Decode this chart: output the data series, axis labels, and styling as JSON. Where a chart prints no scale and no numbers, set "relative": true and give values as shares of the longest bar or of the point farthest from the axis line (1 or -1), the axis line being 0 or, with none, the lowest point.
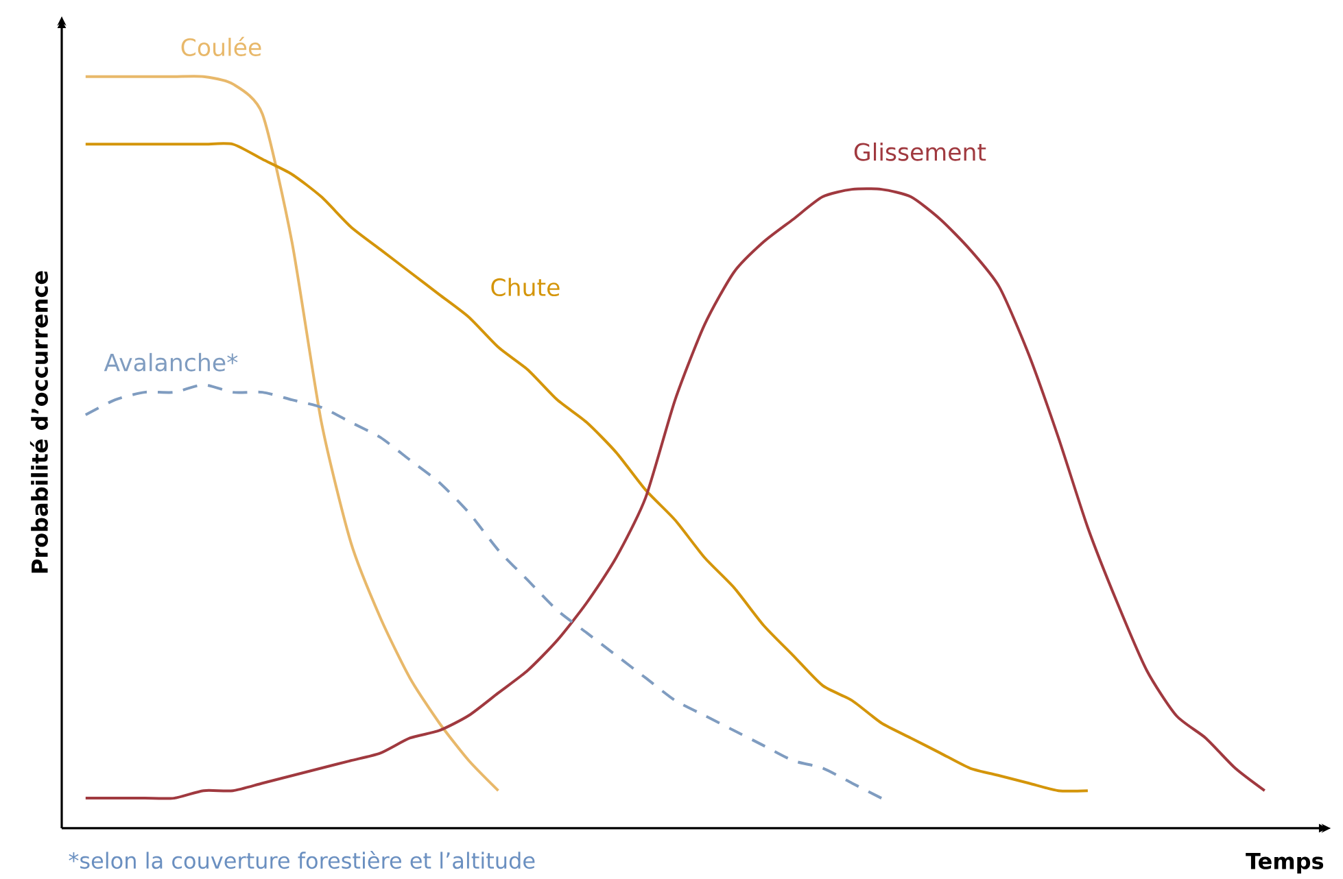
{
  "chart_data": {
    "type": "line",
    "relative": true,
    "xlabel": "Temps",
    "ylabel": "Probabilité d’occurrence",
    "annotations": [
      "*selon la couverture forestière et l’altitude"
    ],
    "categories": [
      null,
      null,
      null,
      null,
      null,
      null,
      null,
      null,
      null,
      null,
      null,
      null,
      null,
      null,
      null,
      null,
      null,
      null,
      null,
      null,
      null,
      null,
      null,
      null,
      null,
      null,
      null,
      null,
      null,
      null,
      null,
      null,
      null,
      null,
      null,
      null,
      null,
      null,
      null,
      null,
      null
    ],
    "series": [
      {
        "name": "Coulée",
        "color": "#e8b86a",
        "line_style": "solid",
        "values": [
          1.0,
          1.0,
          1.0,
          1.0,
          1.0,
          0.99,
          0.95,
          0.78,
          0.54,
          0.38,
          0.28,
          0.2,
          0.14,
          0.09,
          0.05,
          null,
          null,
          null,
          null,
          null,
          null,
          null,
          null,
          null,
          null,
          null,
          null,
          null,
          null,
          null,
          null,
          null,
          null,
          null,
          null,
          null,
          null,
          null,
          null,
          null,
          null
        ]
      },
      {
        "name": "Chute",
        "color": "#d4950a",
        "line_style": "solid",
        "values": [
          0.91,
          0.91,
          0.91,
          0.91,
          0.91,
          0.91,
          0.89,
          0.87,
          0.84,
          0.8,
          0.77,
          0.74,
          0.71,
          0.68,
          0.64,
          0.61,
          0.57,
          0.54,
          0.5,
          0.45,
          0.41,
          0.36,
          0.32,
          0.27,
          0.23,
          0.19,
          0.17,
          0.14,
          0.12,
          0.1,
          0.08,
          0.07,
          0.06,
          0.05,
          0.05,
          null,
          null,
          null,
          null,
          null,
          null
        ]
      },
      {
        "name": "Glissement",
        "color": "#a0393f",
        "line_style": "solid",
        "values": [
          0.04,
          0.04,
          0.04,
          0.04,
          0.05,
          0.05,
          0.06,
          0.07,
          0.08,
          0.09,
          0.1,
          0.12,
          0.13,
          0.15,
          0.18,
          0.21,
          0.25,
          0.3,
          0.36,
          0.44,
          0.57,
          0.67,
          0.74,
          0.78,
          0.81,
          0.84,
          0.85,
          0.85,
          0.84,
          0.81,
          0.77,
          0.72,
          0.63,
          0.52,
          0.4,
          0.3,
          0.21,
          0.15,
          0.12,
          0.08,
          0.05
        ]
      },
      {
        "name": "Avalanche*",
        "color": "#7f9cc0",
        "line_style": "dashed",
        "values": [
          0.55,
          0.57,
          0.58,
          0.58,
          0.59,
          0.58,
          0.58,
          0.57,
          0.56,
          0.54,
          0.52,
          0.49,
          0.46,
          0.42,
          0.37,
          0.33,
          0.29,
          0.26,
          0.23,
          0.2,
          0.17,
          0.15,
          0.13,
          0.11,
          0.09,
          0.08,
          0.06,
          0.04,
          null,
          null,
          null,
          null,
          null,
          null,
          null,
          null,
          null,
          null,
          null,
          null,
          null
        ]
      }
    ]
  }
}
